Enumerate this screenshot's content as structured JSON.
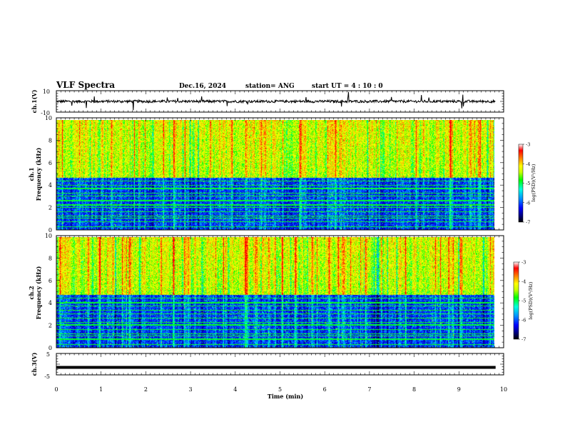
{
  "header": {
    "title": "VLF Spectra",
    "date": "Dec.16, 2024",
    "station": "station= ANG",
    "start_ut": "start  UT =   4 : 10 : 0"
  },
  "chart_data": [
    {
      "id": "ch1_waveform",
      "type": "line",
      "ylabel": "ch.1(V)",
      "ylim": [
        -10,
        10
      ],
      "ytick_labels": [
        "10",
        "-10"
      ],
      "xlim": [
        0,
        10
      ],
      "series": [
        {
          "x": [
            0,
            9.82
          ],
          "y": [
            0,
            0
          ],
          "noise_amplitude": 1.2
        }
      ],
      "grid": false
    },
    {
      "id": "ch1_spectrogram",
      "type": "heatmap",
      "panel_label": "ch.1",
      "ylabel": "Frequency (kHz)",
      "ylim": [
        0,
        10
      ],
      "ytick_labels": [
        "0",
        "2",
        "4",
        "6",
        "8",
        "10"
      ],
      "xlim": [
        0,
        10
      ],
      "data_xlim": [
        0,
        9.82
      ],
      "colorbar": {
        "label": "log(PSD)(V²/Hz)",
        "range": [
          -7,
          -3
        ],
        "tick_labels": [
          "-3",
          "-4",
          "-5",
          "-6",
          "-7"
        ]
      },
      "grid": false
    },
    {
      "id": "ch2_spectrogram",
      "type": "heatmap",
      "panel_label": "ch.2",
      "ylabel": "Frequency (kHz)",
      "ylim": [
        0,
        10
      ],
      "ytick_labels": [
        "0",
        "2",
        "4",
        "6",
        "8",
        "10"
      ],
      "xlim": [
        0,
        10
      ],
      "data_xlim": [
        0,
        9.82
      ],
      "colorbar": {
        "label": "log(PSD)(V²/Hz)",
        "range": [
          -7,
          -3
        ],
        "tick_labels": [
          "-3",
          "-4",
          "-5",
          "-6",
          "-7"
        ]
      },
      "grid": false
    },
    {
      "id": "ch3_waveform",
      "type": "line",
      "ylabel": "ch.3(V)",
      "ylim": [
        -5,
        5
      ],
      "ytick_labels": [
        "5",
        "-5"
      ],
      "xlim": [
        0,
        10
      ],
      "series": [
        {
          "x": [
            0,
            9.82
          ],
          "y": [
            -1.5,
            -1.5
          ]
        }
      ],
      "xlabel": "Time (min)",
      "xtick_labels": [
        "0",
        "1",
        "2",
        "3",
        "4",
        "5",
        "6",
        "7",
        "8",
        "9",
        "10"
      ],
      "grid": false
    }
  ],
  "colors": {
    "colormap": [
      "#000000",
      "#00007a",
      "#0000ff",
      "#0090ff",
      "#00ffe0",
      "#00ff00",
      "#c8ff00",
      "#ffff00",
      "#ff8000",
      "#ff0000",
      "#ffffff"
    ]
  }
}
